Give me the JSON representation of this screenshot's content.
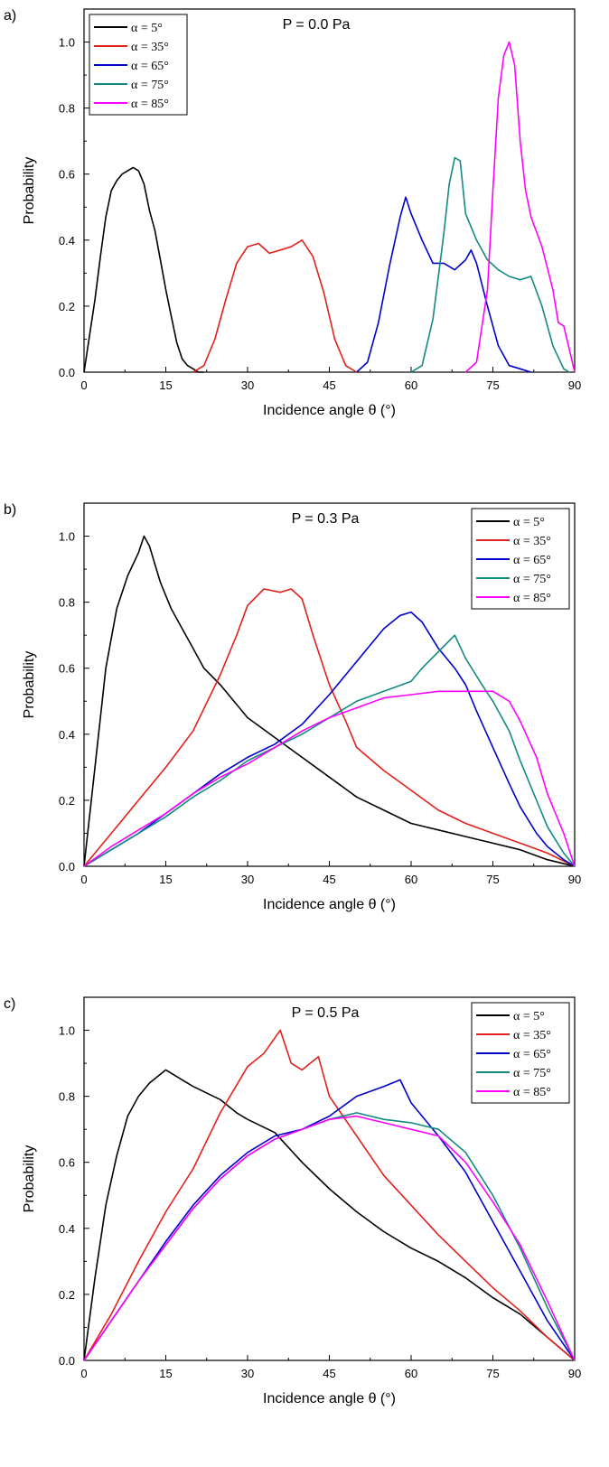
{
  "chart_data": [
    {
      "type": "line",
      "panel_label": "a)",
      "title": "P = 0.0 Pa",
      "xlabel": "Incidence angle θ (°)",
      "ylabel": "Probability",
      "xlim": [
        0,
        90
      ],
      "ylim": [
        0,
        1.1
      ],
      "xticks": [
        "0",
        "15",
        "30",
        "45",
        "60",
        "75",
        "90"
      ],
      "yticks": [
        "0.0",
        "0.2",
        "0.4",
        "0.6",
        "0.8",
        "1.0"
      ],
      "legend_position": "top-left",
      "series": [
        {
          "name": "α = 5°",
          "color": "#000000",
          "x": [
            0,
            2,
            3,
            4,
            5,
            6,
            7,
            8,
            9,
            10,
            11,
            12,
            13,
            14,
            15,
            16,
            17,
            18,
            19,
            20,
            21,
            22
          ],
          "y": [
            0.0,
            0.22,
            0.35,
            0.47,
            0.55,
            0.58,
            0.6,
            0.61,
            0.62,
            0.61,
            0.57,
            0.49,
            0.43,
            0.34,
            0.25,
            0.17,
            0.09,
            0.04,
            0.02,
            0.01,
            0.0,
            0.0
          ]
        },
        {
          "name": "α = 35°",
          "color": "#e3201b",
          "x": [
            20,
            22,
            24,
            26,
            28,
            30,
            32,
            34,
            36,
            38,
            40,
            42,
            44,
            46,
            48,
            50
          ],
          "y": [
            0.0,
            0.02,
            0.1,
            0.22,
            0.33,
            0.38,
            0.39,
            0.36,
            0.37,
            0.38,
            0.4,
            0.35,
            0.24,
            0.1,
            0.02,
            0.0
          ]
        },
        {
          "name": "α = 65°",
          "color": "#0000cc",
          "x": [
            50,
            52,
            54,
            56,
            58,
            59,
            60,
            62,
            64,
            66,
            68,
            70,
            71,
            72,
            74,
            76,
            78,
            80,
            82
          ],
          "y": [
            0.0,
            0.03,
            0.15,
            0.32,
            0.47,
            0.53,
            0.48,
            0.4,
            0.33,
            0.33,
            0.31,
            0.34,
            0.37,
            0.33,
            0.2,
            0.08,
            0.02,
            0.01,
            0.0
          ]
        },
        {
          "name": "α = 75°",
          "color": "#138a80",
          "x": [
            60,
            62,
            64,
            66,
            67,
            68,
            69,
            70,
            72,
            74,
            76,
            78,
            80,
            82,
            84,
            86,
            88,
            89
          ],
          "y": [
            0.0,
            0.02,
            0.16,
            0.42,
            0.57,
            0.65,
            0.64,
            0.48,
            0.4,
            0.34,
            0.31,
            0.29,
            0.28,
            0.29,
            0.2,
            0.08,
            0.01,
            0.0
          ]
        },
        {
          "name": "α = 85°",
          "color": "#ff00ff",
          "x": [
            70,
            72,
            74,
            75,
            76,
            77,
            78,
            79,
            80,
            81,
            82,
            84,
            86,
            87,
            88,
            89,
            90
          ],
          "y": [
            0.0,
            0.03,
            0.25,
            0.55,
            0.83,
            0.96,
            1.0,
            0.93,
            0.7,
            0.55,
            0.47,
            0.38,
            0.25,
            0.15,
            0.14,
            0.07,
            0.0
          ]
        }
      ]
    },
    {
      "type": "line",
      "panel_label": "b)",
      "title": "P = 0.3 Pa",
      "xlabel": "Incidence angle θ (°)",
      "ylabel": "Probability",
      "xlim": [
        0,
        90
      ],
      "ylim": [
        0,
        1.1
      ],
      "xticks": [
        "0",
        "15",
        "30",
        "45",
        "60",
        "75",
        "90"
      ],
      "yticks": [
        "0.0",
        "0.2",
        "0.4",
        "0.6",
        "0.8",
        "1.0"
      ],
      "legend_position": "top-right",
      "series": [
        {
          "name": "α = 5°",
          "color": "#000000",
          "x": [
            0,
            2,
            4,
            6,
            8,
            10,
            11,
            12,
            14,
            16,
            18,
            20,
            22,
            25,
            28,
            30,
            35,
            40,
            45,
            50,
            55,
            60,
            65,
            70,
            75,
            80,
            85,
            90
          ],
          "y": [
            0.0,
            0.3,
            0.6,
            0.78,
            0.88,
            0.95,
            1.0,
            0.97,
            0.86,
            0.78,
            0.72,
            0.66,
            0.6,
            0.55,
            0.49,
            0.45,
            0.39,
            0.33,
            0.27,
            0.21,
            0.17,
            0.13,
            0.11,
            0.09,
            0.07,
            0.05,
            0.02,
            0.0
          ]
        },
        {
          "name": "α = 35°",
          "color": "#e3201b",
          "x": [
            0,
            5,
            10,
            15,
            20,
            25,
            28,
            30,
            33,
            36,
            38,
            40,
            42,
            45,
            48,
            50,
            55,
            60,
            65,
            70,
            75,
            80,
            85,
            90
          ],
          "y": [
            0.0,
            0.1,
            0.2,
            0.3,
            0.41,
            0.58,
            0.7,
            0.79,
            0.84,
            0.83,
            0.84,
            0.81,
            0.7,
            0.55,
            0.44,
            0.36,
            0.29,
            0.23,
            0.17,
            0.13,
            0.1,
            0.07,
            0.04,
            0.0
          ]
        },
        {
          "name": "α = 65°",
          "color": "#0000cc",
          "x": [
            0,
            5,
            10,
            15,
            20,
            25,
            30,
            35,
            40,
            45,
            50,
            55,
            58,
            60,
            62,
            65,
            68,
            70,
            72,
            75,
            78,
            80,
            83,
            85,
            88,
            90
          ],
          "y": [
            0.0,
            0.05,
            0.1,
            0.16,
            0.22,
            0.28,
            0.33,
            0.37,
            0.43,
            0.52,
            0.62,
            0.72,
            0.76,
            0.77,
            0.74,
            0.66,
            0.6,
            0.55,
            0.47,
            0.36,
            0.25,
            0.18,
            0.1,
            0.06,
            0.02,
            0.0
          ]
        },
        {
          "name": "α = 75°",
          "color": "#138a80",
          "x": [
            0,
            5,
            10,
            15,
            20,
            25,
            30,
            35,
            40,
            45,
            50,
            55,
            60,
            62,
            65,
            68,
            70,
            73,
            75,
            78,
            80,
            83,
            85,
            88,
            90
          ],
          "y": [
            0.0,
            0.05,
            0.1,
            0.15,
            0.21,
            0.26,
            0.32,
            0.36,
            0.4,
            0.45,
            0.5,
            0.53,
            0.56,
            0.6,
            0.65,
            0.7,
            0.63,
            0.55,
            0.5,
            0.41,
            0.32,
            0.2,
            0.12,
            0.04,
            0.0
          ]
        },
        {
          "name": "α = 85°",
          "color": "#ff00ff",
          "x": [
            0,
            5,
            10,
            15,
            20,
            25,
            30,
            35,
            40,
            45,
            50,
            55,
            60,
            65,
            70,
            75,
            78,
            80,
            83,
            85,
            88,
            90
          ],
          "y": [
            0.0,
            0.06,
            0.11,
            0.16,
            0.22,
            0.27,
            0.31,
            0.36,
            0.41,
            0.45,
            0.48,
            0.51,
            0.52,
            0.53,
            0.53,
            0.53,
            0.5,
            0.44,
            0.33,
            0.22,
            0.1,
            0.0
          ]
        }
      ]
    },
    {
      "type": "line",
      "panel_label": "c)",
      "title": "P = 0.5 Pa",
      "xlabel": "Incidence angle θ (°)",
      "ylabel": "Probability",
      "xlim": [
        0,
        90
      ],
      "ylim": [
        0,
        1.1
      ],
      "xticks": [
        "0",
        "15",
        "30",
        "45",
        "60",
        "75",
        "90"
      ],
      "yticks": [
        "0.0",
        "0.2",
        "0.4",
        "0.6",
        "0.8",
        "1.0"
      ],
      "legend_position": "top-right",
      "series": [
        {
          "name": "α = 5°",
          "color": "#000000",
          "x": [
            0,
            2,
            4,
            6,
            8,
            10,
            12,
            15,
            18,
            20,
            25,
            28,
            30,
            35,
            40,
            45,
            50,
            55,
            60,
            65,
            70,
            75,
            80,
            85,
            90
          ],
          "y": [
            0.0,
            0.25,
            0.47,
            0.62,
            0.74,
            0.8,
            0.84,
            0.88,
            0.85,
            0.83,
            0.79,
            0.75,
            0.73,
            0.69,
            0.6,
            0.52,
            0.45,
            0.39,
            0.34,
            0.3,
            0.25,
            0.19,
            0.14,
            0.07,
            0.0
          ]
        },
        {
          "name": "α = 35°",
          "color": "#e3201b",
          "x": [
            0,
            5,
            10,
            15,
            20,
            25,
            30,
            33,
            36,
            38,
            40,
            43,
            45,
            50,
            55,
            60,
            65,
            70,
            75,
            80,
            85,
            90
          ],
          "y": [
            0.0,
            0.14,
            0.3,
            0.45,
            0.58,
            0.75,
            0.89,
            0.93,
            1.0,
            0.9,
            0.88,
            0.92,
            0.8,
            0.68,
            0.56,
            0.47,
            0.38,
            0.3,
            0.22,
            0.15,
            0.07,
            0.0
          ]
        },
        {
          "name": "α = 65°",
          "color": "#0000cc",
          "x": [
            0,
            5,
            10,
            15,
            20,
            25,
            30,
            35,
            40,
            45,
            50,
            55,
            58,
            60,
            65,
            70,
            75,
            80,
            85,
            90
          ],
          "y": [
            0.0,
            0.12,
            0.24,
            0.36,
            0.47,
            0.56,
            0.63,
            0.68,
            0.7,
            0.74,
            0.8,
            0.83,
            0.85,
            0.78,
            0.68,
            0.57,
            0.42,
            0.27,
            0.12,
            0.0
          ]
        },
        {
          "name": "α = 75°",
          "color": "#138a80",
          "x": [
            0,
            5,
            10,
            15,
            20,
            25,
            30,
            35,
            40,
            45,
            50,
            55,
            60,
            65,
            70,
            75,
            80,
            85,
            90
          ],
          "y": [
            0.0,
            0.12,
            0.24,
            0.35,
            0.46,
            0.55,
            0.62,
            0.67,
            0.7,
            0.73,
            0.75,
            0.73,
            0.72,
            0.7,
            0.63,
            0.5,
            0.34,
            0.16,
            0.0
          ]
        },
        {
          "name": "α = 85°",
          "color": "#ff00ff",
          "x": [
            0,
            5,
            10,
            15,
            20,
            25,
            30,
            35,
            40,
            45,
            50,
            55,
            60,
            65,
            70,
            75,
            80,
            85,
            90
          ],
          "y": [
            0.0,
            0.12,
            0.24,
            0.35,
            0.46,
            0.55,
            0.62,
            0.67,
            0.7,
            0.73,
            0.74,
            0.72,
            0.7,
            0.68,
            0.6,
            0.48,
            0.35,
            0.18,
            0.0
          ]
        }
      ]
    }
  ]
}
